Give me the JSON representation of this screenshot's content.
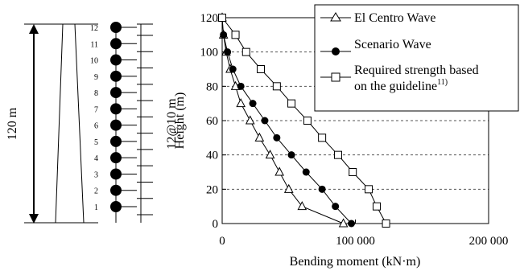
{
  "chart_data": {
    "type": "line",
    "xlabel": "Bending moment (kN·m)",
    "ylabel": "Height (m)",
    "xlim": [
      0,
      200000
    ],
    "ylim": [
      0,
      120
    ],
    "xticks": [
      0,
      100000,
      200000
    ],
    "xtick_labels": [
      "0",
      "100 000",
      "200 000"
    ],
    "yticks": [
      0,
      20,
      40,
      60,
      80,
      100,
      120
    ],
    "ytick_labels": [
      "0",
      "20",
      "40",
      "60",
      "80",
      "100",
      "120"
    ],
    "grid": "horizontal dashed",
    "legend_position": "top-right",
    "series": [
      {
        "name": "El Centro Wave",
        "marker": "open-triangle",
        "x": [
          91000,
          60000,
          50000,
          43000,
          36000,
          28000,
          21000,
          14000,
          10000,
          6000,
          3000,
          1000,
          0
        ],
        "y": [
          0,
          10,
          20,
          30,
          40,
          50,
          60,
          70,
          80,
          90,
          100,
          110,
          120
        ]
      },
      {
        "name": "Scenario Wave",
        "marker": "filled-circle",
        "x": [
          97000,
          85000,
          75000,
          63000,
          52000,
          41000,
          32000,
          23000,
          14000,
          8000,
          4000,
          1000
        ],
        "y": [
          0,
          10,
          20,
          30,
          40,
          50,
          60,
          70,
          80,
          90,
          100,
          110
        ]
      },
      {
        "name": "Required strength based on the guideline",
        "name_lines": [
          "Required strength based",
          "on the guideline"
        ],
        "name_superscript": "11)",
        "marker": "open-square",
        "x": [
          123000,
          116000,
          110000,
          98000,
          87000,
          75000,
          64000,
          52000,
          41000,
          29000,
          18000,
          10000,
          0
        ],
        "y": [
          0,
          10,
          20,
          30,
          40,
          50,
          60,
          70,
          80,
          90,
          100,
          110,
          120
        ]
      }
    ]
  },
  "structure": {
    "height_label": "120 m",
    "spacing_label": "12@10 m",
    "mass_numbers": [
      "1",
      "2",
      "3",
      "4",
      "5",
      "6",
      "7",
      "8",
      "9",
      "10",
      "11",
      "12"
    ]
  }
}
